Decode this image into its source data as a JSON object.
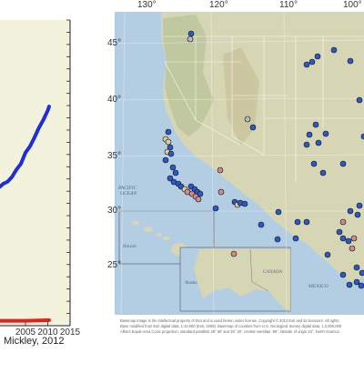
{
  "chart_data": [
    {
      "type": "line",
      "title": "",
      "xlabel": "",
      "ylabel": "",
      "xlim": [
        1999.3,
        2015
      ],
      "ylim": [
        0,
        100
      ],
      "x_ticks": [
        2005,
        2010,
        2015
      ],
      "x_tick_labels": [
        "2005",
        "2010",
        "2015"
      ],
      "grid": false,
      "background_color": "#f3f3dd",
      "series": [
        {
          "color": "#1f2fd6",
          "x": [
            1999.3,
            2000,
            2001,
            2002,
            2003,
            2004,
            2005,
            2006,
            2007,
            2008,
            2009,
            2010,
            2010.3
          ],
          "values": [
            45.5,
            46.4,
            47.1,
            48.7,
            51.1,
            53.0,
            56.6,
            58.6,
            61.5,
            64.7,
            67.3,
            70.4,
            71.7
          ]
        },
        {
          "color": "#e32020",
          "x": [
            1999.3,
            2002,
            2005,
            2008,
            2010.3
          ],
          "values": [
            1.6,
            1.6,
            1.6,
            1.7,
            1.8
          ]
        }
      ]
    },
    {
      "type": "scatter",
      "title": "",
      "longitude_labels": [
        "130°",
        "120°",
        "110°",
        "100°"
      ],
      "latitude_labels": [
        "45°",
        "40°",
        "35°",
        "30°",
        "25°"
      ],
      "place_labels": {
        "ocean": [
          "PACIFIC",
          "OCEAN"
        ],
        "hawaii": "Hawaii",
        "alaska": "Alaska",
        "canada": "CANADA",
        "mexico": "MEXICO"
      },
      "marker_colors": {
        "blue": "#2a5ac8",
        "tan": "#e3c89a",
        "pink": "#cf8b8b",
        "gray": "#b9b9b9"
      }
    }
  ],
  "map_caption": [
    "Basemap image is the intellectual property of Esri and is used herein under license. Copyright © 2014 Esri and its licensors. All rights",
    "Base modified from Esri digital data, 1:10,000 (Esri, 2009). Basemap of counties from U.S. Geological Survey digital data, 1:2,000,000",
    "Albers Equal-Area Conic projection, standard parallels 29° 30' and 45° 30', central meridian -96°, latitude of origin 23°. North America"
  ],
  "credit": "Mickley, 2012"
}
